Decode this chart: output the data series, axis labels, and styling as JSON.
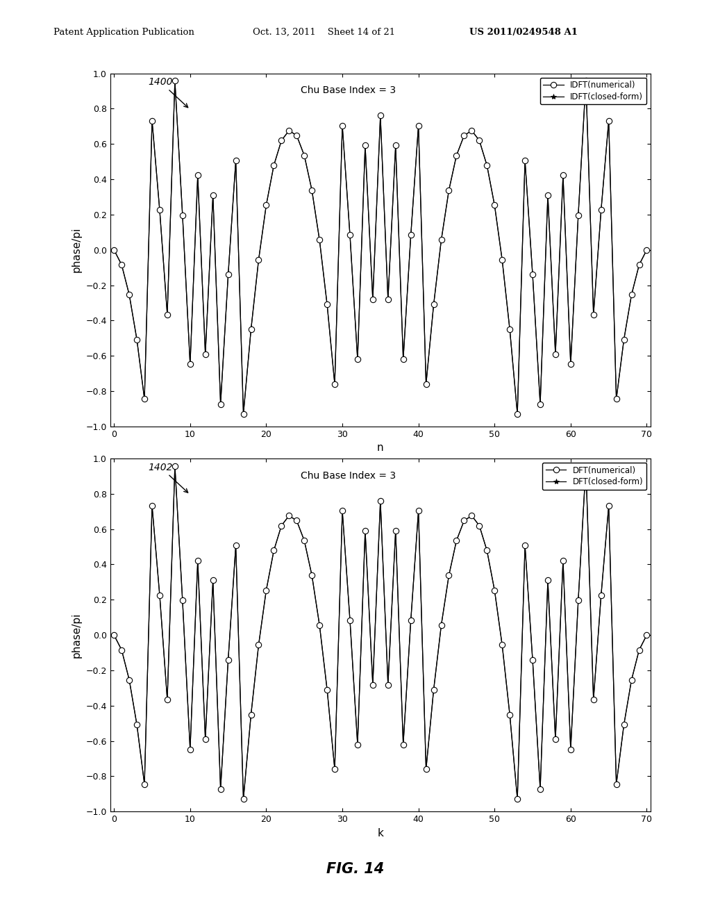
{
  "N": 71,
  "u": 3,
  "title1": "Chu Base Index = 3",
  "title2": "Chu Base Index = 3",
  "label1_num": "IDFT(numerical)",
  "label1_cf": "IDFT(closed-form)",
  "label2_num": "DFT(numerical)",
  "label2_cf": "DFT(closed-form)",
  "xlabel1": "n",
  "xlabel2": "k",
  "ylabel": "phase/pi",
  "ylim": [
    -1,
    1
  ],
  "xlim": [
    -0.5,
    70.5
  ],
  "xticks": [
    0,
    10,
    20,
    30,
    40,
    50,
    60,
    70
  ],
  "yticks": [
    -1,
    -0.8,
    -0.6,
    -0.4,
    -0.2,
    0,
    0.2,
    0.4,
    0.6,
    0.8,
    1
  ],
  "annot1": "1400",
  "annot2": "1402",
  "fig_label": "FIG. 14",
  "header_left": "Patent Application Publication",
  "header_mid": "Oct. 13, 2011    Sheet 14 of 21",
  "header_right": "US 2011/0249548 A1",
  "background_color": "#ffffff",
  "line_color": "#000000"
}
